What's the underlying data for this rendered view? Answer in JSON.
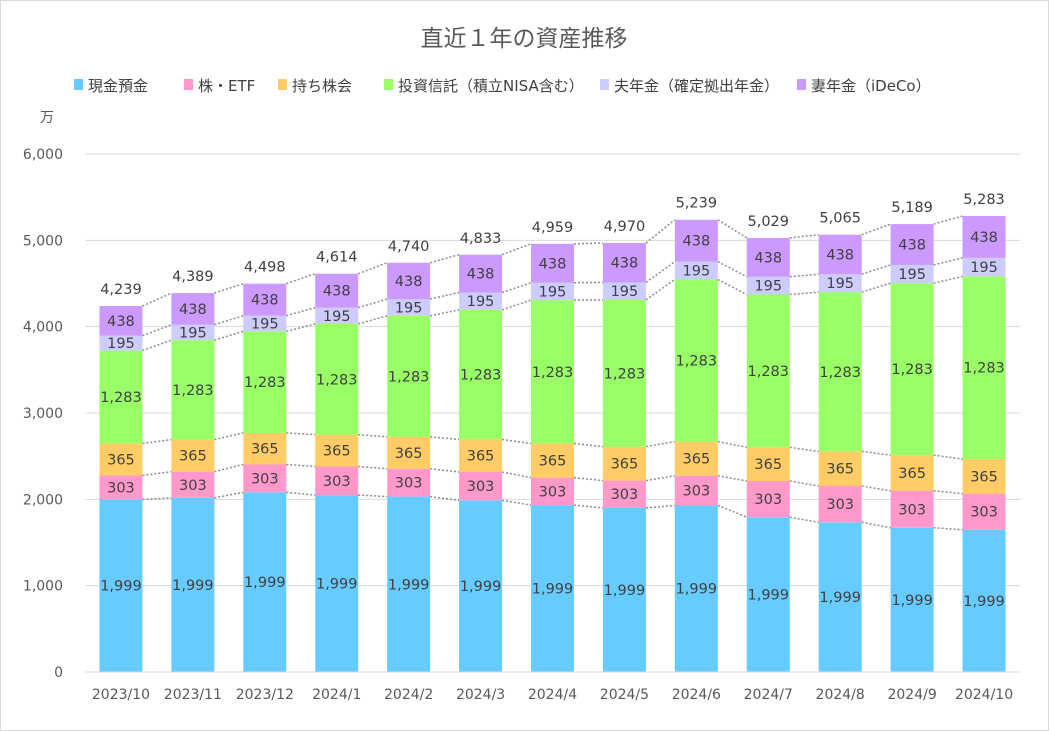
{
  "chart_data": {
    "type": "bar",
    "stacked": true,
    "title": "直近１年の資産推移",
    "ylabel": "万",
    "xlabel": "",
    "ylim": [
      0,
      6000
    ],
    "yticks": [
      0,
      1000,
      2000,
      3000,
      4000,
      5000,
      6000
    ],
    "ytick_labels": [
      "0",
      "1,000",
      "2,000",
      "3,000",
      "4,000",
      "5,000",
      "6,000"
    ],
    "grid": true,
    "legend_position": "top",
    "series_lines": true,
    "categories": [
      "2023/10",
      "2023/11",
      "2023/12",
      "2024/1",
      "2024/2",
      "2024/3",
      "2024/4",
      "2024/5",
      "2024/6",
      "2024/7",
      "2024/8",
      "2024/9",
      "2024/10"
    ],
    "series": [
      {
        "name": "現金預金",
        "color": "#66CCFF",
        "values": [
          1999,
          2017,
          2081,
          2049,
          2032,
          1989,
          1933,
          1901,
          1929,
          1793,
          1734,
          1671,
          1648
        ]
      },
      {
        "name": "株・ETF",
        "color": "#FF99CC",
        "values": [
          277,
          303,
          323,
          331,
          322,
          328,
          318,
          316,
          344,
          420,
          420,
          428,
          418
        ]
      },
      {
        "name": "持ち株会",
        "color": "#FFCC66",
        "values": [
          370,
          372,
          365,
          369,
          370,
          377,
          395,
          393,
          396,
          389,
          401,
          413,
          401
        ]
      },
      {
        "name": "投資信託（積立NISA含む）",
        "color": "#99FF66",
        "values": [
          1077,
          1152,
          1177,
          1283,
          1401,
          1501,
          1662,
          1700,
          1877,
          1771,
          1845,
          1992,
          2115
        ]
      },
      {
        "name": "夫年金（確定拠出年金）",
        "color": "#CCCCFF",
        "values": [
          172,
          179,
          181,
          188,
          195,
          201,
          201,
          202,
          207,
          205,
          208,
          211,
          215
        ]
      },
      {
        "name": "妻年金（iDeCo）",
        "color": "#CC99FF",
        "values": [
          344,
          366,
          371,
          393,
          420,
          438,
          450,
          457,
          485,
          450,
          457,
          473,
          485
        ]
      }
    ],
    "totals": [
      4239,
      4389,
      4498,
      4614,
      4740,
      4833,
      4959,
      4970,
      5239,
      5029,
      5065,
      5189,
      5283
    ]
  }
}
